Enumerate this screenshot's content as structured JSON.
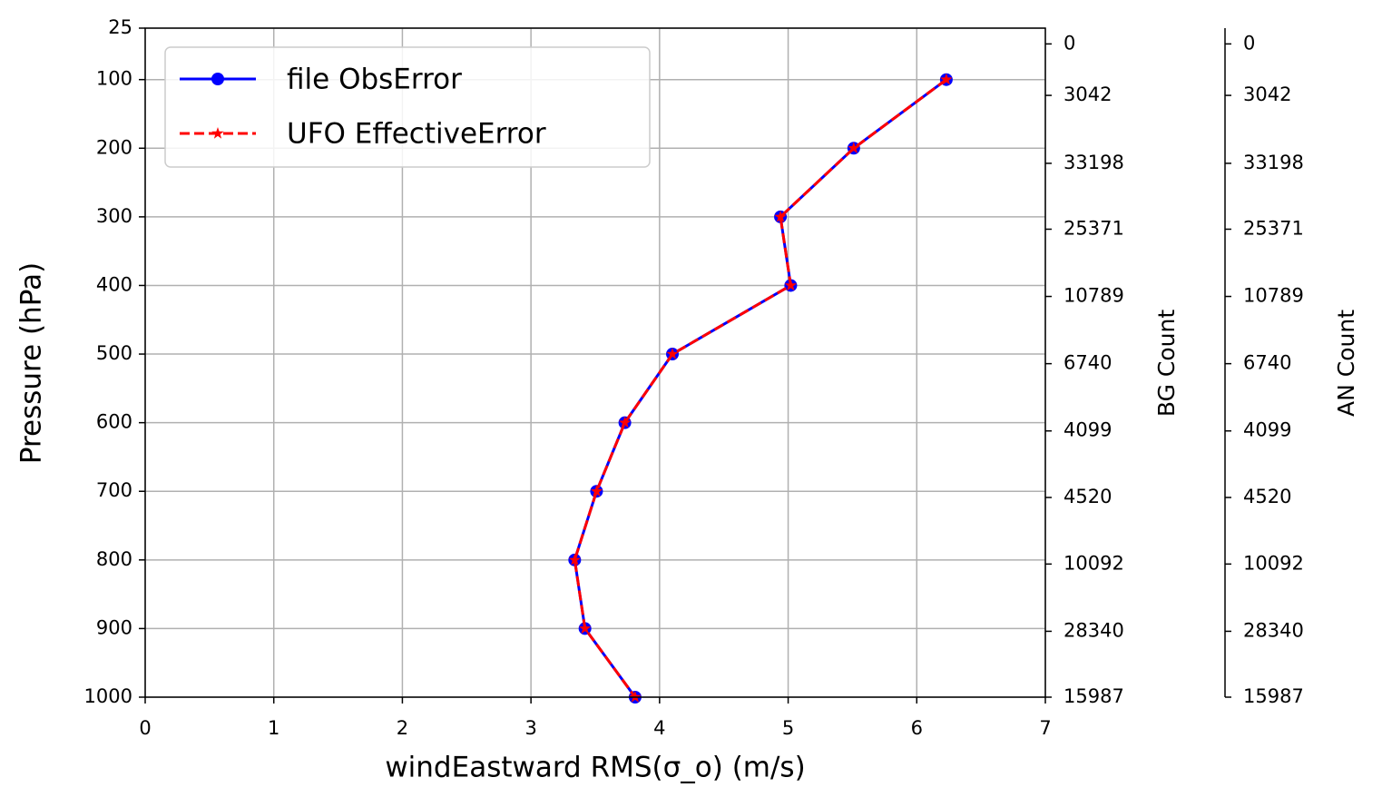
{
  "chart_data": {
    "type": "line",
    "xlabel": "windEastward RMS(σ_o) (m/s)",
    "ylabel": "Pressure (hPa)",
    "xlim": [
      0,
      7
    ],
    "xticks": [
      0,
      1,
      2,
      3,
      4,
      5,
      6,
      7
    ],
    "ylim": [
      1000,
      25
    ],
    "yticks": [
      25,
      100,
      200,
      300,
      400,
      500,
      600,
      700,
      800,
      900,
      1000
    ],
    "grid": true,
    "legend": "upper left",
    "y": [
      100,
      200,
      300,
      400,
      500,
      600,
      700,
      800,
      900,
      1000
    ],
    "series": [
      {
        "name": "file ObsError",
        "color": "#0000ff",
        "linestyle": "solid",
        "marker": "circle",
        "values": [
          6.23,
          5.51,
          4.94,
          5.02,
          4.1,
          3.73,
          3.51,
          3.34,
          3.42,
          3.81
        ]
      },
      {
        "name": "UFO EffectiveError",
        "color": "#ff0000",
        "linestyle": "dashed",
        "marker": "star",
        "values": [
          6.23,
          5.51,
          4.94,
          5.02,
          4.1,
          3.73,
          3.51,
          3.34,
          3.42,
          3.81
        ]
      }
    ],
    "right_axes": [
      {
        "label": "BG Count",
        "ticks": [
          {
            "value": 48,
            "label": "0"
          },
          {
            "value": 123,
            "label": "3042"
          },
          {
            "value": 222,
            "label": "33198"
          },
          {
            "value": 318,
            "label": "25371"
          },
          {
            "value": 416,
            "label": "10789"
          },
          {
            "value": 514,
            "label": "6740"
          },
          {
            "value": 612,
            "label": "4099"
          },
          {
            "value": 709,
            "label": "4520"
          },
          {
            "value": 806,
            "label": "10092"
          },
          {
            "value": 904,
            "label": "28340"
          },
          {
            "value": 1000,
            "label": "15987"
          }
        ]
      },
      {
        "label": "AN Count",
        "ticks": [
          {
            "value": 48,
            "label": "0"
          },
          {
            "value": 123,
            "label": "3042"
          },
          {
            "value": 222,
            "label": "33198"
          },
          {
            "value": 318,
            "label": "25371"
          },
          {
            "value": 416,
            "label": "10789"
          },
          {
            "value": 514,
            "label": "6740"
          },
          {
            "value": 612,
            "label": "4099"
          },
          {
            "value": 709,
            "label": "4520"
          },
          {
            "value": 806,
            "label": "10092"
          },
          {
            "value": 904,
            "label": "28340"
          },
          {
            "value": 1000,
            "label": "15987"
          }
        ]
      }
    ]
  }
}
